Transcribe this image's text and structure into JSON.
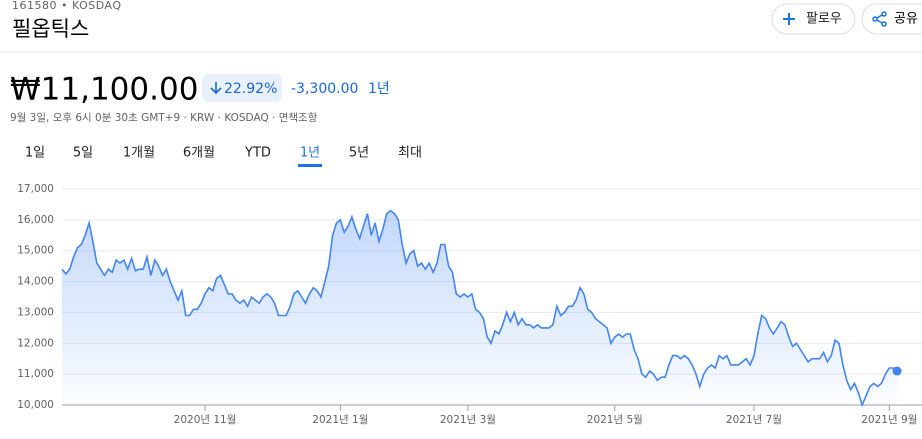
{
  "header": {
    "exchange": "161580 • KOSDAQ",
    "title": "필옵틱스",
    "follow": "팔로우",
    "share": "공유"
  },
  "quote": {
    "price": "₩11,100.00",
    "change_pct": "22.92%",
    "change": "-3,300.00",
    "period": "1년",
    "meta": "9월 3일, 오후 6시 0분 30초 GMT+9 · KRW · KOSDAQ · 면책조항"
  },
  "tabs": [
    "1일",
    "5일",
    "1개월",
    "6개월",
    "YTD",
    "1년",
    "5년",
    "최대"
  ],
  "selected_tab": 5,
  "chart_data": {
    "type": "line",
    "color": "#4285f4",
    "grid": true,
    "x": [
      0,
      1,
      2,
      3,
      4,
      5,
      6,
      7,
      8,
      9,
      10,
      11,
      12,
      13,
      14,
      15,
      16,
      17,
      18,
      19,
      20,
      21,
      22,
      23,
      24,
      25,
      26,
      27,
      28,
      29,
      30,
      31,
      32,
      33,
      34,
      35,
      36,
      37,
      38,
      39,
      40,
      41,
      42,
      43,
      44,
      45,
      46,
      47,
      48,
      49,
      50,
      51,
      52,
      53,
      54,
      55,
      56,
      57,
      58,
      59,
      60,
      61,
      62,
      63,
      64,
      65,
      66,
      67,
      68,
      69,
      70,
      71,
      72,
      73,
      74,
      75,
      76,
      77,
      78,
      79,
      80,
      81,
      82,
      83,
      84,
      85,
      86,
      87,
      88,
      89,
      90,
      91,
      92,
      93,
      94,
      95,
      96,
      97,
      98,
      99,
      100,
      101,
      102,
      103,
      104,
      105,
      106,
      107,
      108,
      109,
      110,
      111,
      112,
      113,
      114,
      115,
      116,
      117,
      118,
      119,
      120,
      121,
      122,
      123,
      124,
      125,
      126,
      127,
      128,
      129,
      130,
      131,
      132,
      133,
      134,
      135,
      136,
      137,
      138,
      139,
      140,
      141,
      142,
      143,
      144,
      145,
      146,
      147,
      148,
      149,
      150,
      151,
      152,
      153,
      154,
      155,
      156,
      157,
      158,
      159,
      160,
      161,
      162,
      163,
      164,
      165,
      166,
      167,
      168,
      169,
      170,
      171,
      172,
      173,
      174,
      175,
      176,
      177,
      178,
      179,
      180,
      181,
      182,
      183,
      184,
      185,
      186,
      187,
      188,
      189,
      190,
      191,
      192,
      193,
      194,
      195,
      196,
      197,
      198,
      199,
      200,
      201,
      202,
      203,
      204,
      205,
      206,
      207,
      208,
      209,
      210,
      211,
      212,
      213,
      214,
      215,
      216
    ],
    "values": [
      14400,
      14250,
      14400,
      14800,
      15100,
      15200,
      15500,
      15900,
      15300,
      14600,
      14400,
      14200,
      14400,
      14300,
      14700,
      14600,
      14700,
      14400,
      14750,
      14350,
      14400,
      14400,
      14800,
      14200,
      14700,
      14500,
      14200,
      14400,
      14000,
      13700,
      13400,
      13700,
      12900,
      12900,
      13100,
      13100,
      13300,
      13600,
      13800,
      13700,
      14100,
      14200,
      13900,
      13600,
      13600,
      13400,
      13300,
      13400,
      13200,
      13500,
      13400,
      13300,
      13500,
      13600,
      13500,
      13300,
      12900,
      12900,
      12900,
      13200,
      13600,
      13700,
      13500,
      13300,
      13600,
      13800,
      13700,
      13500,
      14000,
      14500,
      15500,
      15900,
      16000,
      15600,
      15800,
      16100,
      15700,
      15400,
      15800,
      16200,
      15500,
      15900,
      15300,
      15700,
      16200,
      16300,
      16200,
      16000,
      15200,
      14600,
      14900,
      15000,
      14500,
      14600,
      14400,
      14600,
      14300,
      14600,
      15200,
      15200,
      14500,
      14300,
      13600,
      13500,
      13600,
      13500,
      13600,
      13100,
      13000,
      12800,
      12200,
      12000,
      12400,
      12300,
      12600,
      13000,
      12700,
      13000,
      12600,
      12800,
      12600,
      12600,
      12500,
      12600,
      12500,
      12500,
      12500,
      12600,
      13200,
      12900,
      13000,
      13200,
      13200,
      13400,
      13800,
      13600,
      13100,
      13000,
      12800,
      12700,
      12600,
      12500,
      12000,
      12200,
      12300,
      12200,
      12300,
      12300,
      11800,
      11500,
      11000,
      10900,
      11100,
      11000,
      10800,
      10900,
      10900,
      11300,
      11600,
      11600,
      11500,
      11600,
      11500,
      11300,
      11000,
      10600,
      11000,
      11200,
      11300,
      11200,
      11600,
      11500,
      11600,
      11300,
      11300,
      11300,
      11400,
      11500,
      11300,
      11600,
      12300,
      12900,
      12800,
      12500,
      12300,
      12500,
      12700,
      12600,
      12200,
      11900,
      12000,
      11800,
      11600,
      11400,
      11500,
      11500,
      11500,
      11700,
      11400,
      11600,
      12100,
      12000,
      11300,
      10800,
      10500,
      10700,
      10400,
      10000,
      10300,
      10600,
      10700,
      10600,
      10700,
      11000,
      11200,
      11200,
      11100
    ],
    "xlim": [
      0,
      216
    ],
    "xticks": [
      {
        "value": 37,
        "label": "2020년 11월"
      },
      {
        "value": 72,
        "label": "2021년 1월"
      },
      {
        "value": 105,
        "label": "2021년 3월"
      },
      {
        "value": 143,
        "label": "2021년 5월"
      },
      {
        "value": 179,
        "label": "2021년 7월"
      },
      {
        "value": 214,
        "label": "2021년 9월"
      }
    ],
    "ylim": [
      10000,
      17000
    ],
    "yticks": [
      {
        "value": 10000,
        "label": "10,000"
      },
      {
        "value": 11000,
        "label": "11,000"
      },
      {
        "value": 12000,
        "label": "12,000"
      },
      {
        "value": 13000,
        "label": "13,000"
      },
      {
        "value": 14000,
        "label": "14,000"
      },
      {
        "value": 15000,
        "label": "15,000"
      },
      {
        "value": 16000,
        "label": "16,000"
      },
      {
        "value": 17000,
        "label": "17,000"
      }
    ]
  }
}
